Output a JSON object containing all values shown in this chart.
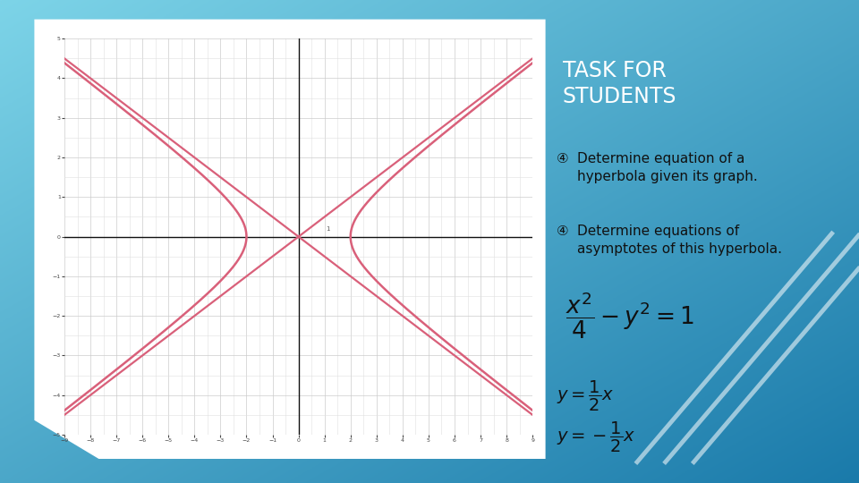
{
  "bg_color1": "#7dd4e8",
  "bg_color2": "#1a7aaa",
  "paper_color": "#ffffff",
  "grid_color": "#cccccc",
  "axis_color": "#111111",
  "hyperbola_color": "#d9607a",
  "asymptote_color": "#d9607a",
  "hyperbola_linewidth": 1.8,
  "asymptote_linewidth": 1.6,
  "x_range": [
    -9,
    9
  ],
  "y_range": [
    -5,
    5
  ],
  "a": 2,
  "b": 1,
  "title": "TASK FOR\nSTUDENTS",
  "title_color": "#ffffff",
  "title_fontsize": 17,
  "bullet1": "Determine equation of a\nhyperbola given its graph.",
  "bullet2": "Determine equations of\nasymptotes of this hyperbola.",
  "formula": "$\\dfrac{x^2}{4} - y^2 = 1$",
  "asymptote1": "$y = \\dfrac{1}{2}x$",
  "asymptote2": "$y = -\\dfrac{1}{2}x$",
  "text_color": "#111111",
  "formula_fontsize": 19,
  "asymptote_text_fontsize": 14,
  "bullet_fontsize": 11,
  "stripe_color": "#ffffff",
  "stripe_alpha": 0.55
}
